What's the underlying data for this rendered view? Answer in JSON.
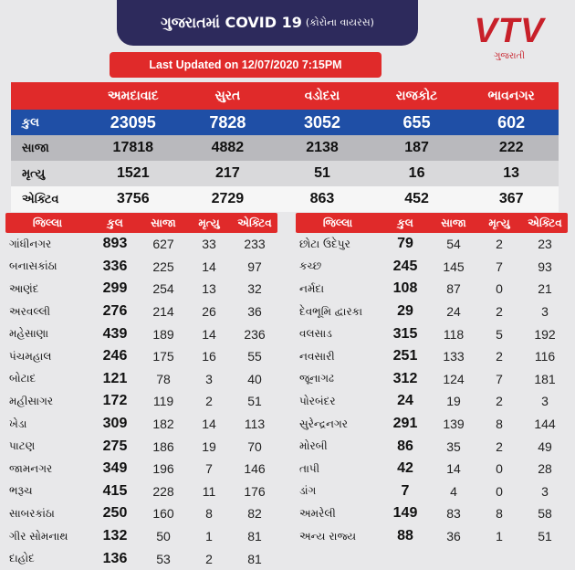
{
  "header": {
    "title_main": "ગુજરાતમાં COVID 19",
    "title_sub": "(કોરોના વાયરસ)",
    "updated": "Last Updated on 12/07/2020 7:15PM"
  },
  "logo": {
    "brand": "VTV",
    "state": "ગુજરાતી"
  },
  "summary": {
    "cities": [
      "અમદાવાદ",
      "સુરત",
      "વડોદરા",
      "રાજકોટ",
      "ભાવનગર"
    ],
    "rows": [
      {
        "label": "કુલ",
        "values": [
          "23095",
          "7828",
          "3052",
          "655",
          "602"
        ]
      },
      {
        "label": "સાજા",
        "values": [
          "17818",
          "4882",
          "2138",
          "187",
          "222"
        ]
      },
      {
        "label": "મૃત્યુ",
        "values": [
          "1521",
          "217",
          "51",
          "16",
          "13"
        ]
      },
      {
        "label": "એક્ટિવ",
        "values": [
          "3756",
          "2729",
          "863",
          "452",
          "367"
        ]
      }
    ]
  },
  "districts": {
    "headers": [
      "જિલ્લા",
      "કુલ",
      "સાજા",
      "મૃત્યુ",
      "એક્ટિવ"
    ],
    "left": [
      [
        "ગાંધીનગર",
        "893",
        "627",
        "33",
        "233"
      ],
      [
        "બનાસકાંઠા",
        "336",
        "225",
        "14",
        "97"
      ],
      [
        "આણંદ",
        "299",
        "254",
        "13",
        "32"
      ],
      [
        "અરવલ્લી",
        "276",
        "214",
        "26",
        "36"
      ],
      [
        "મહેસાણા",
        "439",
        "189",
        "14",
        "236"
      ],
      [
        "પંચમહાલ",
        "246",
        "175",
        "16",
        "55"
      ],
      [
        "બોટાદ",
        "121",
        "78",
        "3",
        "40"
      ],
      [
        "મહીસાગર",
        "172",
        "119",
        "2",
        "51"
      ],
      [
        "ખેડા",
        "309",
        "182",
        "14",
        "113"
      ],
      [
        "પાટણ",
        "275",
        "186",
        "19",
        "70"
      ],
      [
        "જામનગર",
        "349",
        "196",
        "7",
        "146"
      ],
      [
        "ભરૂચ",
        "415",
        "228",
        "11",
        "176"
      ],
      [
        "સાબરકાંઠા",
        "250",
        "160",
        "8",
        "82"
      ],
      [
        "ગીર સોમનાથ",
        "132",
        "50",
        "1",
        "81"
      ],
      [
        "દાહોદ",
        "136",
        "53",
        "2",
        "81"
      ]
    ],
    "right": [
      [
        "છોટા ઉદેપુર",
        "79",
        "54",
        "2",
        "23"
      ],
      [
        "કચ્છ",
        "245",
        "145",
        "7",
        "93"
      ],
      [
        "નર્મદા",
        "108",
        "87",
        "0",
        "21"
      ],
      [
        "દેવભૂમિ દ્વારકા",
        "29",
        "24",
        "2",
        "3"
      ],
      [
        "વલસાડ",
        "315",
        "118",
        "5",
        "192"
      ],
      [
        "નવસારી",
        "251",
        "133",
        "2",
        "116"
      ],
      [
        "જૂનાગઢ",
        "312",
        "124",
        "7",
        "181"
      ],
      [
        "પોરબંદર",
        "24",
        "19",
        "2",
        "3"
      ],
      [
        "સુરેન્દ્રનગર",
        "291",
        "139",
        "8",
        "144"
      ],
      [
        "મોરબી",
        "86",
        "35",
        "2",
        "49"
      ],
      [
        "તાપી",
        "42",
        "14",
        "0",
        "28"
      ],
      [
        "ડાંગ",
        "7",
        "4",
        "0",
        "3"
      ],
      [
        "અમરેલી",
        "149",
        "83",
        "8",
        "58"
      ],
      [
        "અન્ય રાજ્ય",
        "88",
        "36",
        "1",
        "51"
      ]
    ]
  }
}
